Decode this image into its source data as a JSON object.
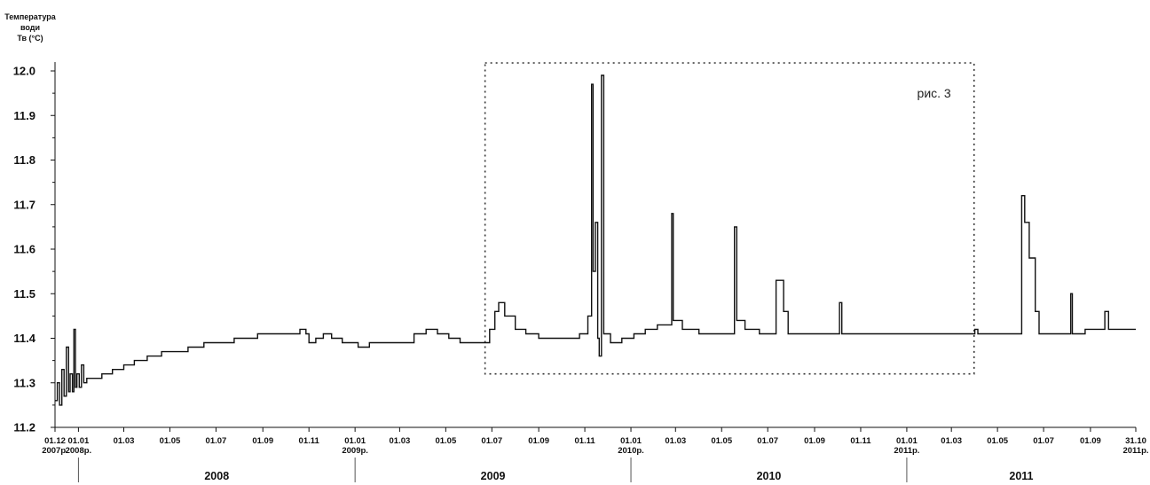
{
  "chart_data": {
    "type": "line",
    "ylabel_lines": [
      "Температура",
      "води",
      "Тв (°C)"
    ],
    "ylim": [
      11.2,
      12.0
    ],
    "yticks": [
      "11.2",
      "11.3",
      "11.4",
      "11.5",
      "11.6",
      "11.7",
      "11.8",
      "11.9",
      "12.0"
    ],
    "xlim": [
      "2007-12-01",
      "2011-10-31"
    ],
    "xticks": [
      {
        "date": "2007-12-01",
        "line1": "01.12",
        "line2": "2007р."
      },
      {
        "date": "2008-01-01",
        "line1": "01.01",
        "line2": "2008р."
      },
      {
        "date": "2008-03-01",
        "line1": "01.03",
        "line2": ""
      },
      {
        "date": "2008-05-01",
        "line1": "01.05",
        "line2": ""
      },
      {
        "date": "2008-07-01",
        "line1": "01.07",
        "line2": ""
      },
      {
        "date": "2008-09-01",
        "line1": "01.09",
        "line2": ""
      },
      {
        "date": "2008-11-01",
        "line1": "01.11",
        "line2": ""
      },
      {
        "date": "2009-01-01",
        "line1": "01.01",
        "line2": "2009р."
      },
      {
        "date": "2009-03-01",
        "line1": "01.03",
        "line2": ""
      },
      {
        "date": "2009-05-01",
        "line1": "01.05",
        "line2": ""
      },
      {
        "date": "2009-07-01",
        "line1": "01.07",
        "line2": ""
      },
      {
        "date": "2009-09-01",
        "line1": "01.09",
        "line2": ""
      },
      {
        "date": "2009-11-01",
        "line1": "01.11",
        "line2": ""
      },
      {
        "date": "2010-01-01",
        "line1": "01.01",
        "line2": "2010р."
      },
      {
        "date": "2010-03-01",
        "line1": "01.03",
        "line2": ""
      },
      {
        "date": "2010-05-01",
        "line1": "01.05",
        "line2": ""
      },
      {
        "date": "2010-07-01",
        "line1": "01.07",
        "line2": ""
      },
      {
        "date": "2010-09-01",
        "line1": "01.09",
        "line2": ""
      },
      {
        "date": "2010-11-01",
        "line1": "01.11",
        "line2": ""
      },
      {
        "date": "2011-01-01",
        "line1": "01.01",
        "line2": "2011р."
      },
      {
        "date": "2011-03-01",
        "line1": "01.03",
        "line2": ""
      },
      {
        "date": "2011-05-01",
        "line1": "01.05",
        "line2": ""
      },
      {
        "date": "2011-07-01",
        "line1": "01.07",
        "line2": ""
      },
      {
        "date": "2011-09-01",
        "line1": "01.09",
        "line2": ""
      },
      {
        "date": "2011-10-31",
        "line1": "31.10",
        "line2": "2011р."
      }
    ],
    "years": [
      {
        "label": "2008",
        "start": "2008-01-01",
        "end": "2009-01-01"
      },
      {
        "label": "2009",
        "start": "2009-01-01",
        "end": "2010-01-01"
      },
      {
        "label": "2010",
        "start": "2010-01-01",
        "end": "2011-01-01"
      },
      {
        "label": "2011",
        "start": "2011-01-01",
        "end": "2011-10-31"
      }
    ],
    "annotation": {
      "label": "рис. 3",
      "x_range": [
        "2009-06-22",
        "2011-03-31"
      ],
      "y_range": [
        11.32,
        12.0
      ]
    },
    "series": [
      {
        "points": [
          [
            "2007-12-01",
            11.26
          ],
          [
            "2007-12-04",
            11.3
          ],
          [
            "2007-12-07",
            11.25
          ],
          [
            "2007-12-10",
            11.33
          ],
          [
            "2007-12-13",
            11.27
          ],
          [
            "2007-12-16",
            11.38
          ],
          [
            "2007-12-19",
            11.28
          ],
          [
            "2007-12-21",
            11.32
          ],
          [
            "2007-12-24",
            11.28
          ],
          [
            "2007-12-26",
            11.42
          ],
          [
            "2007-12-28",
            11.29
          ],
          [
            "2007-12-30",
            11.32
          ],
          [
            "2008-01-02",
            11.29
          ],
          [
            "2008-01-05",
            11.34
          ],
          [
            "2008-01-08",
            11.3
          ],
          [
            "2008-01-12",
            11.31
          ],
          [
            "2008-01-20",
            11.31
          ],
          [
            "2008-02-01",
            11.32
          ],
          [
            "2008-02-15",
            11.33
          ],
          [
            "2008-03-01",
            11.34
          ],
          [
            "2008-03-15",
            11.35
          ],
          [
            "2008-04-01",
            11.36
          ],
          [
            "2008-04-20",
            11.37
          ],
          [
            "2008-05-10",
            11.37
          ],
          [
            "2008-05-25",
            11.38
          ],
          [
            "2008-06-15",
            11.39
          ],
          [
            "2008-07-10",
            11.39
          ],
          [
            "2008-07-25",
            11.4
          ],
          [
            "2008-08-15",
            11.4
          ],
          [
            "2008-08-25",
            11.41
          ],
          [
            "2008-09-15",
            11.41
          ],
          [
            "2008-10-10",
            11.41
          ],
          [
            "2008-10-20",
            11.42
          ],
          [
            "2008-10-28",
            11.41
          ],
          [
            "2008-11-01",
            11.39
          ],
          [
            "2008-11-10",
            11.4
          ],
          [
            "2008-11-20",
            11.41
          ],
          [
            "2008-12-01",
            11.4
          ],
          [
            "2008-12-15",
            11.39
          ],
          [
            "2009-01-05",
            11.38
          ],
          [
            "2009-01-20",
            11.39
          ],
          [
            "2009-02-15",
            11.39
          ],
          [
            "2009-03-05",
            11.39
          ],
          [
            "2009-03-20",
            11.41
          ],
          [
            "2009-04-05",
            11.42
          ],
          [
            "2009-04-20",
            11.41
          ],
          [
            "2009-05-05",
            11.4
          ],
          [
            "2009-05-20",
            11.39
          ],
          [
            "2009-06-10",
            11.39
          ],
          [
            "2009-06-22",
            11.39
          ],
          [
            "2009-06-28",
            11.42
          ],
          [
            "2009-07-05",
            11.46
          ],
          [
            "2009-07-10",
            11.48
          ],
          [
            "2009-07-18",
            11.45
          ],
          [
            "2009-08-01",
            11.42
          ],
          [
            "2009-08-15",
            11.41
          ],
          [
            "2009-09-01",
            11.4
          ],
          [
            "2009-10-01",
            11.4
          ],
          [
            "2009-10-25",
            11.41
          ],
          [
            "2009-11-05",
            11.45
          ],
          [
            "2009-11-10",
            11.97
          ],
          [
            "2009-11-12",
            11.55
          ],
          [
            "2009-11-15",
            11.66
          ],
          [
            "2009-11-18",
            11.4
          ],
          [
            "2009-11-20",
            11.36
          ],
          [
            "2009-11-23",
            11.99
          ],
          [
            "2009-11-26",
            11.41
          ],
          [
            "2009-12-05",
            11.39
          ],
          [
            "2009-12-20",
            11.4
          ],
          [
            "2010-01-05",
            11.41
          ],
          [
            "2010-01-20",
            11.42
          ],
          [
            "2010-02-05",
            11.43
          ],
          [
            "2010-02-20",
            11.43
          ],
          [
            "2010-02-24",
            11.68
          ],
          [
            "2010-02-26",
            11.44
          ],
          [
            "2010-03-10",
            11.42
          ],
          [
            "2010-04-01",
            11.41
          ],
          [
            "2010-04-20",
            11.41
          ],
          [
            "2010-05-10",
            11.41
          ],
          [
            "2010-05-18",
            11.65
          ],
          [
            "2010-05-21",
            11.44
          ],
          [
            "2010-06-01",
            11.42
          ],
          [
            "2010-06-20",
            11.41
          ],
          [
            "2010-07-05",
            11.41
          ],
          [
            "2010-07-12",
            11.53
          ],
          [
            "2010-07-22",
            11.46
          ],
          [
            "2010-07-28",
            11.41
          ],
          [
            "2010-08-15",
            11.41
          ],
          [
            "2010-09-15",
            11.41
          ],
          [
            "2010-10-01",
            11.41
          ],
          [
            "2010-10-04",
            11.48
          ],
          [
            "2010-10-07",
            11.41
          ],
          [
            "2010-11-15",
            11.41
          ],
          [
            "2010-12-31",
            11.41
          ],
          [
            "2011-02-01",
            11.41
          ],
          [
            "2011-03-10",
            11.41
          ],
          [
            "2011-03-30",
            11.41
          ],
          [
            "2011-04-01",
            11.42
          ],
          [
            "2011-04-05",
            11.41
          ],
          [
            "2011-05-10",
            11.41
          ],
          [
            "2011-05-28",
            11.41
          ],
          [
            "2011-06-02",
            11.72
          ],
          [
            "2011-06-06",
            11.66
          ],
          [
            "2011-06-12",
            11.58
          ],
          [
            "2011-06-20",
            11.46
          ],
          [
            "2011-06-25",
            11.41
          ],
          [
            "2011-07-20",
            11.41
          ],
          [
            "2011-08-04",
            11.41
          ],
          [
            "2011-08-06",
            11.5
          ],
          [
            "2011-08-08",
            11.41
          ],
          [
            "2011-08-25",
            11.42
          ],
          [
            "2011-09-10",
            11.42
          ],
          [
            "2011-09-20",
            11.46
          ],
          [
            "2011-09-25",
            11.42
          ],
          [
            "2011-10-15",
            11.42
          ],
          [
            "2011-10-31",
            11.42
          ]
        ]
      }
    ]
  }
}
